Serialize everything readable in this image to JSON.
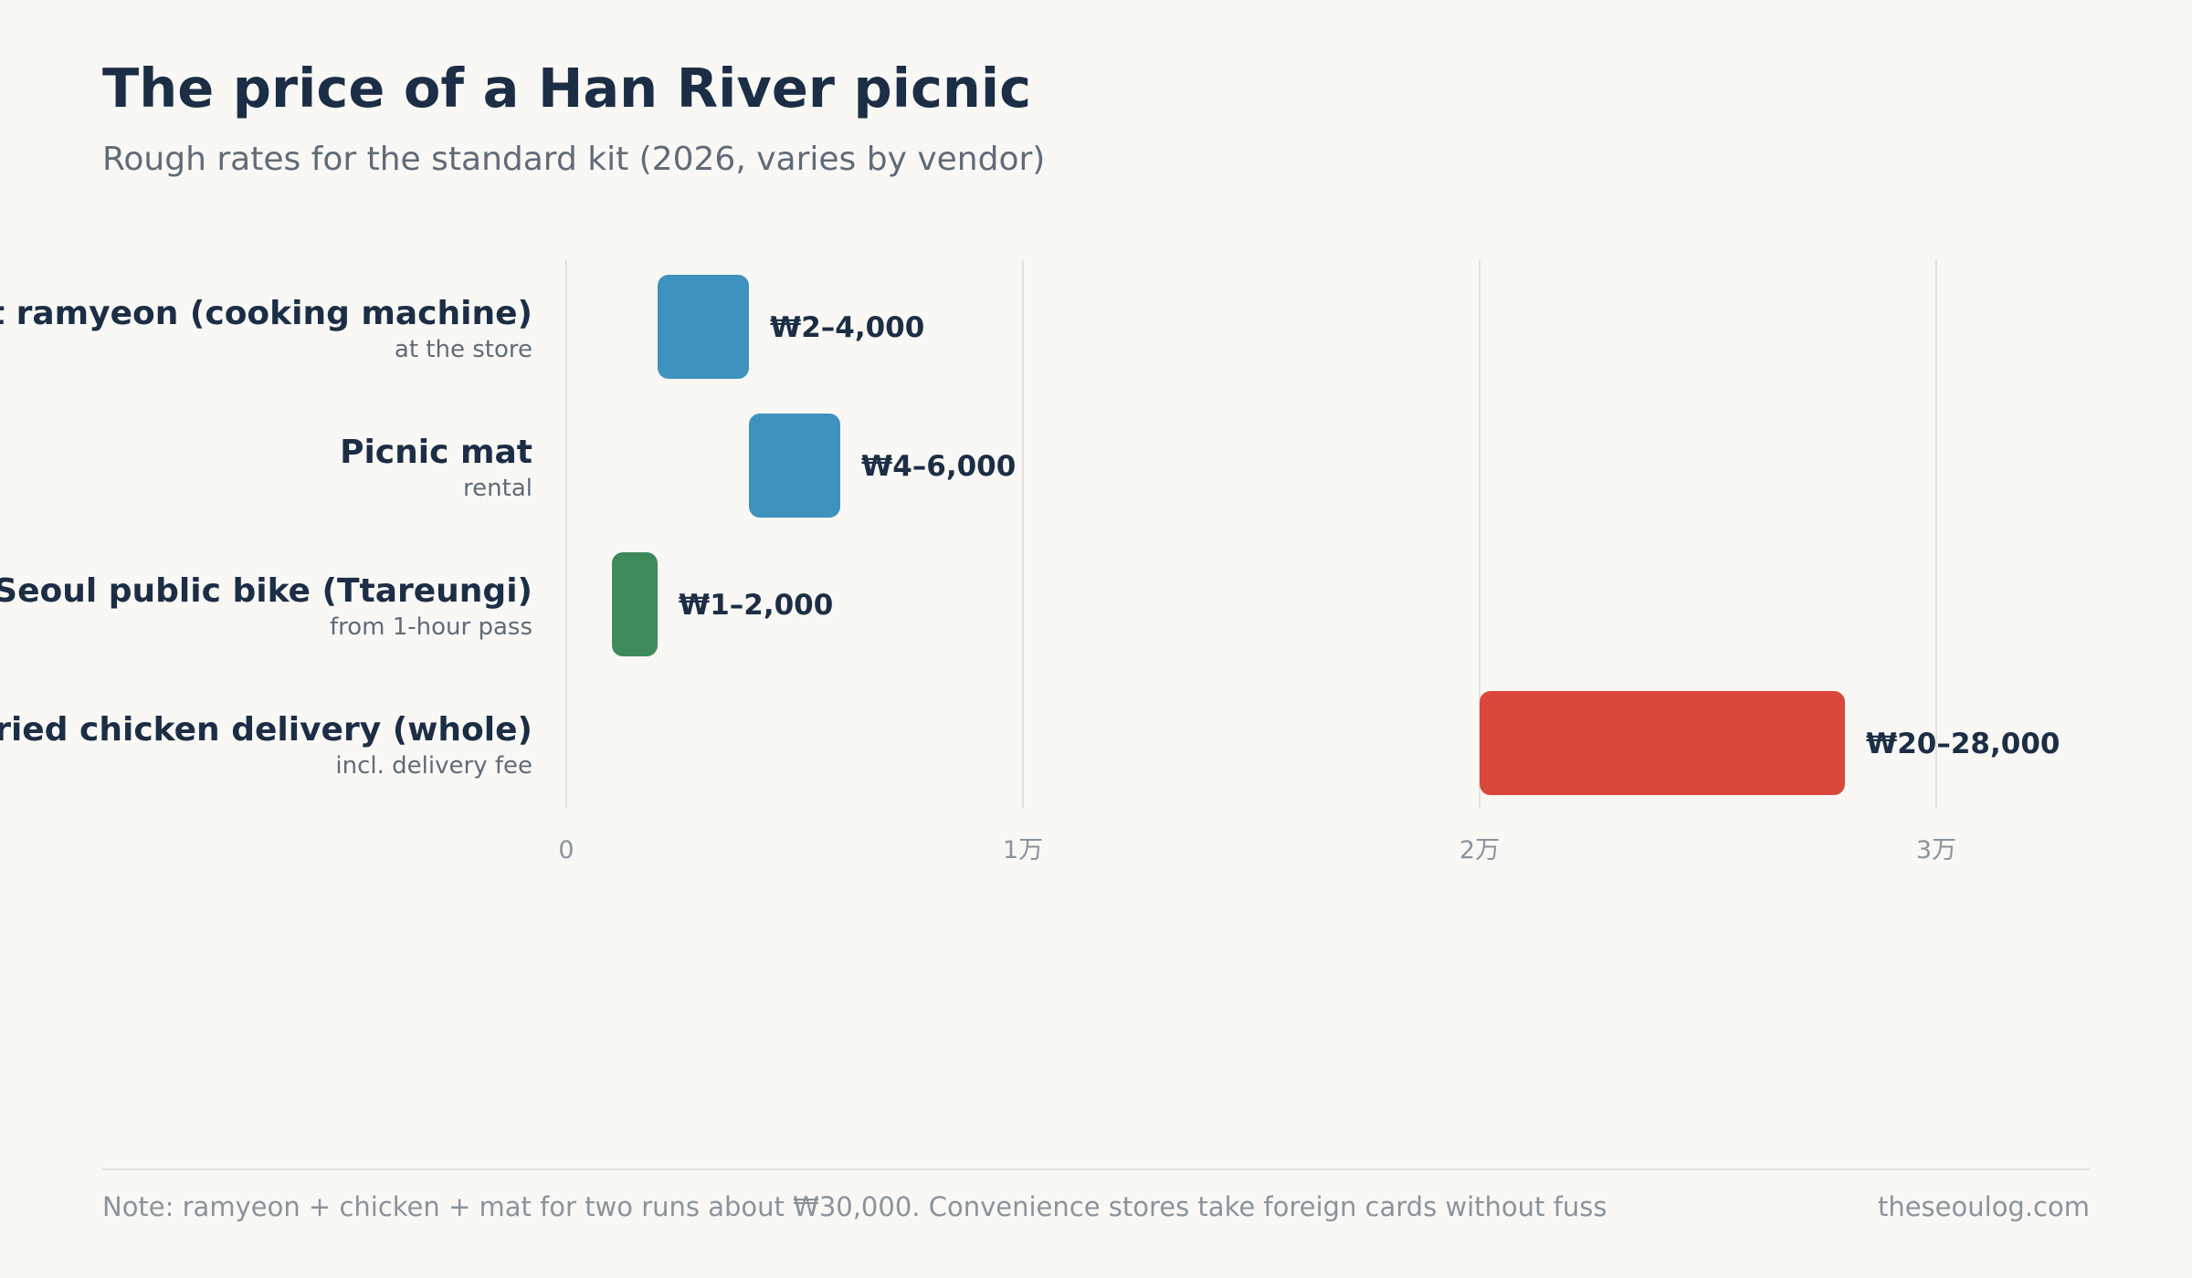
{
  "title": "The price of a Han River picnic",
  "subtitle": "Rough rates for the standard kit (2026, varies by vendor)",
  "chart_data": {
    "type": "bar",
    "orientation": "horizontal",
    "range_bars": true,
    "categories": [
      "Instant ramyeon (cooking machine)",
      "Picnic mat",
      "Seoul public bike (Ttareungi)",
      "Fried chicken delivery (whole)"
    ],
    "sublabels": [
      "at the store",
      "rental",
      "from 1-hour pass",
      "incl. delivery fee"
    ],
    "ranges": [
      [
        2000,
        4000
      ],
      [
        4000,
        6000
      ],
      [
        1000,
        2000
      ],
      [
        20000,
        28000
      ]
    ],
    "value_labels": [
      "₩2–4,000",
      "₩4–6,000",
      "₩1–2,000",
      "₩20–28,000"
    ],
    "colors": [
      "#3f92bf",
      "#3f92bf",
      "#3f8a5a",
      "#d9483b"
    ],
    "xlim": [
      0,
      35000
    ],
    "x_ticks": [
      0,
      10000,
      20000,
      30000
    ],
    "x_tick_labels": [
      "0",
      "1万",
      "2万",
      "3万"
    ],
    "grid": true,
    "legend": "none"
  },
  "footer": {
    "note": "Note: ramyeon + chicken + mat for two runs about ₩30,000. Convenience stores take foreign cards without fuss",
    "source": "theseoulog.com"
  }
}
